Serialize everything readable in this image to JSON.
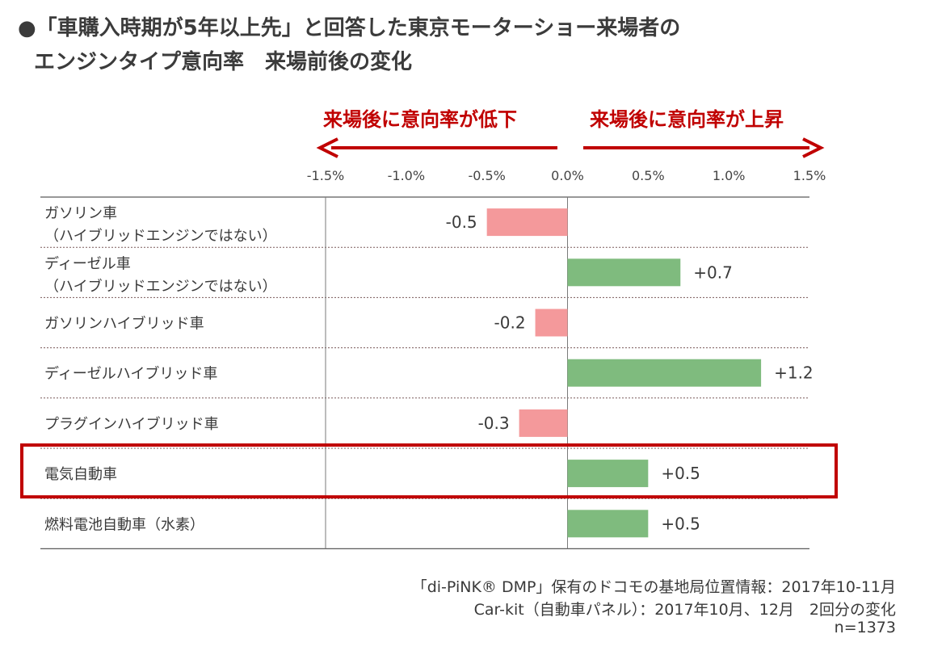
{
  "title": {
    "line1": "●「車購入時期が5年以上先」と回答した東京モーターショー来場者の",
    "line2": "エンジンタイプ意向率　来場前後の変化"
  },
  "direction_labels": {
    "left": "来場後に意向率が低下",
    "right": "来場後に意向率が上昇"
  },
  "colors": {
    "negative": "#f4999b",
    "positive": "#7fbb7e",
    "arrow": "#c00000",
    "highlight": "#c00000"
  },
  "chart_data": {
    "type": "bar",
    "orientation": "horizontal",
    "xlim": [
      -1.5,
      1.5
    ],
    "x_ticks": [
      "-1.5%",
      "-1.0%",
      "-0.5%",
      "0.0%",
      "0.5%",
      "1.0%",
      "1.5%"
    ],
    "tick_values": [
      -1.5,
      -1.0,
      -0.5,
      0.0,
      0.5,
      1.0,
      1.5
    ],
    "highlight_index": 5,
    "categories": [
      {
        "line1": "ガソリン車",
        "line2": "（ハイブリッドエンジンではない）"
      },
      {
        "line1": "ディーゼル車",
        "line2": "（ハイブリッドエンジンではない）"
      },
      {
        "line1": "ガソリンハイブリッド車",
        "line2": ""
      },
      {
        "line1": "ディーゼルハイブリッド車",
        "line2": ""
      },
      {
        "line1": "プラグインハイブリッド車",
        "line2": ""
      },
      {
        "line1": "電気自動車",
        "line2": ""
      },
      {
        "line1": "燃料電池自動車（水素）",
        "line2": ""
      }
    ],
    "values": [
      -0.5,
      0.7,
      -0.2,
      1.2,
      -0.3,
      0.5,
      0.5
    ],
    "value_labels": [
      "-0.5",
      "+0.7",
      "-0.2",
      "+1.2",
      "-0.3",
      "+0.5",
      "+0.5"
    ]
  },
  "notes": {
    "line1": "「di-PiNK® DMP」保有のドコモの基地局位置情報：2017年10-11月",
    "line2": "Car-kit（自動車パネル）：2017年10月、12月　2回分の変化",
    "line3": "n=1373"
  }
}
